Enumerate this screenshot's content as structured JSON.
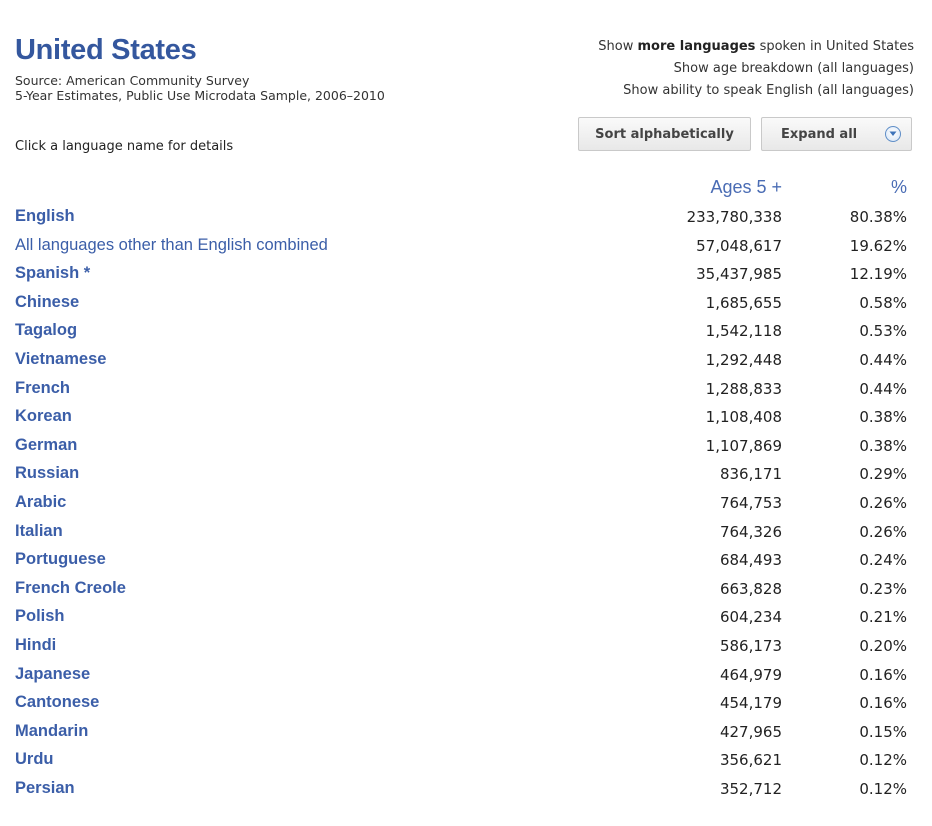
{
  "header": {
    "title": "United States",
    "source_line1": "Source: American Community Survey",
    "source_line2": "5-Year Estimates, Public Use Microdata Sample, 2006–2010"
  },
  "links": {
    "more_prefix": "Show ",
    "more_bold": "more languages",
    "more_suffix": " spoken in United States",
    "age_breakdown": "Show age breakdown (all languages)",
    "ability": "Show ability to speak English (all languages)"
  },
  "buttons": {
    "sort": "Sort alphabetically",
    "expand": "Expand all"
  },
  "hint": "Click a language name for details",
  "columns": {
    "ages": "Ages 5 +",
    "pct": "%"
  },
  "rows": [
    {
      "name": "English",
      "count": "233,780,338",
      "pct": "80.38%",
      "bold": true
    },
    {
      "name": "All languages other than English combined",
      "count": "57,048,617",
      "pct": "19.62%",
      "bold": false
    },
    {
      "name": "Spanish *",
      "count": "35,437,985",
      "pct": "12.19%",
      "bold": true
    },
    {
      "name": "Chinese",
      "count": "1,685,655",
      "pct": "0.58%",
      "bold": true
    },
    {
      "name": "Tagalog",
      "count": "1,542,118",
      "pct": "0.53%",
      "bold": true
    },
    {
      "name": "Vietnamese",
      "count": "1,292,448",
      "pct": "0.44%",
      "bold": true
    },
    {
      "name": "French",
      "count": "1,288,833",
      "pct": "0.44%",
      "bold": true
    },
    {
      "name": "Korean",
      "count": "1,108,408",
      "pct": "0.38%",
      "bold": true
    },
    {
      "name": "German",
      "count": "1,107,869",
      "pct": "0.38%",
      "bold": true
    },
    {
      "name": "Russian",
      "count": "836,171",
      "pct": "0.29%",
      "bold": true
    },
    {
      "name": "Arabic",
      "count": "764,753",
      "pct": "0.26%",
      "bold": true
    },
    {
      "name": "Italian",
      "count": "764,326",
      "pct": "0.26%",
      "bold": true
    },
    {
      "name": "Portuguese",
      "count": "684,493",
      "pct": "0.24%",
      "bold": true
    },
    {
      "name": "French Creole",
      "count": "663,828",
      "pct": "0.23%",
      "bold": true
    },
    {
      "name": "Polish",
      "count": "604,234",
      "pct": "0.21%",
      "bold": true
    },
    {
      "name": "Hindi",
      "count": "586,173",
      "pct": "0.20%",
      "bold": true
    },
    {
      "name": "Japanese",
      "count": "464,979",
      "pct": "0.16%",
      "bold": true
    },
    {
      "name": "Cantonese",
      "count": "454,179",
      "pct": "0.16%",
      "bold": true
    },
    {
      "name": "Mandarin",
      "count": "427,965",
      "pct": "0.15%",
      "bold": true
    },
    {
      "name": "Urdu",
      "count": "356,621",
      "pct": "0.12%",
      "bold": true
    },
    {
      "name": "Persian",
      "count": "352,712",
      "pct": "0.12%",
      "bold": true
    }
  ],
  "icons": {
    "expand": "chevron-down-circle-icon"
  },
  "colors": {
    "title": "#34579e",
    "link": "#3b5ea8",
    "column_header": "#4a6cb4"
  }
}
